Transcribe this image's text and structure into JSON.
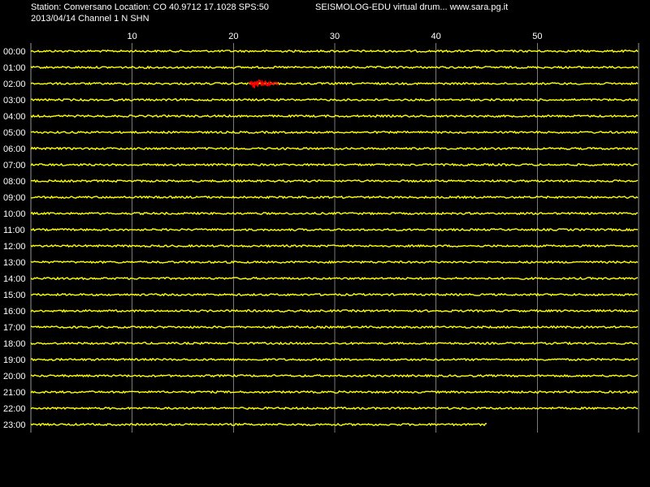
{
  "header": {
    "station_line": "Station: Conversano Location: CO 40.9712 17.1028 SPS:50",
    "date_line": "2013/04/14  Channel 1 N SHN",
    "app_line": "SEISMOLOG-EDU virtual drum... www.sara.pg.it"
  },
  "colors": {
    "background": "#000000",
    "trace": "#ffff00",
    "event": "#ff0000",
    "grid": "#ffffff",
    "text": "#ffffff"
  },
  "chart_data": {
    "type": "line",
    "xlim": [
      0,
      60
    ],
    "x_ticks": [
      10,
      20,
      30,
      40,
      50
    ],
    "x_tick_labels": [
      "10",
      "20",
      "30",
      "40",
      "50"
    ],
    "rows": [
      "00:00",
      "01:00",
      "02:00",
      "03:00",
      "04:00",
      "05:00",
      "06:00",
      "07:00",
      "08:00",
      "09:00",
      "10:00",
      "11:00",
      "12:00",
      "13:00",
      "14:00",
      "15:00",
      "16:00",
      "17:00",
      "18:00",
      "19:00",
      "20:00",
      "21:00",
      "22:00",
      "23:00"
    ],
    "last_row_end_minute": 45,
    "event": {
      "row": "02:00",
      "start_minute": 21.5,
      "end_minute": 24.5,
      "peak_minute": 22.2
    },
    "grid": true
  }
}
